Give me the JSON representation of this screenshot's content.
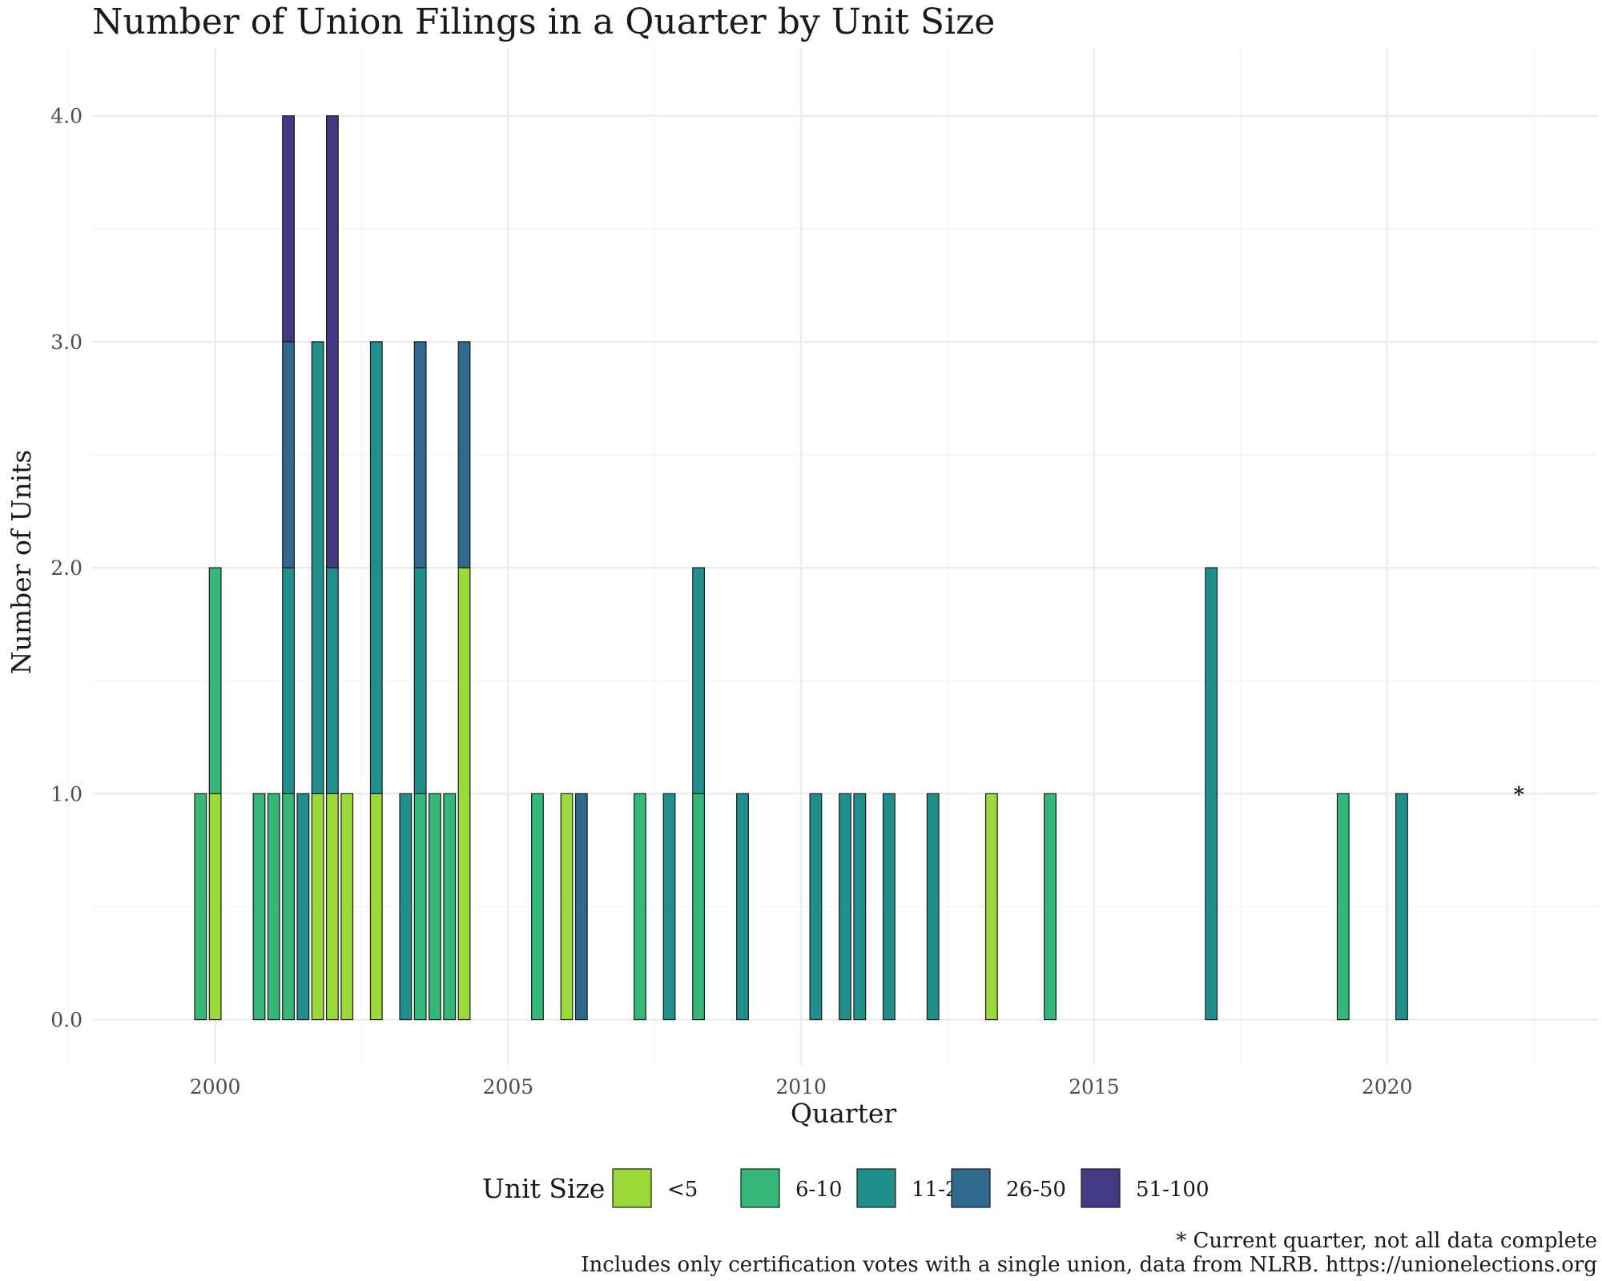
{
  "chart_data": {
    "type": "bar",
    "stacked": true,
    "title": "Number of Union Filings in a Quarter by Unit Size",
    "xlabel": "Quarter",
    "ylabel": "Number of Units",
    "xlim": [
      1997.9,
      2023.6
    ],
    "ylim": [
      -0.2,
      4.3
    ],
    "x_ticks": [
      2000,
      2005,
      2010,
      2015,
      2020
    ],
    "y_ticks": [
      0,
      1,
      2,
      3,
      4
    ],
    "y_tick_labels": [
      "0.0",
      "1.0",
      "2.0",
      "3.0",
      "4.0"
    ],
    "bar_width_years": 0.2,
    "legend": {
      "title": "Unit Size",
      "position": "bottom",
      "entries": [
        "<5",
        "6-10",
        "11-25",
        "26-50",
        "51-100"
      ]
    },
    "colors": {
      "<5": "#9bd93b",
      "6-10": "#35b779",
      "11-25": "#21908d",
      "26-50": "#31688e",
      "51-100": "#443a83"
    },
    "bars": [
      {
        "x": 1999.75,
        "segments": [
          {
            "size": "6-10",
            "count": 1
          }
        ]
      },
      {
        "x": 2000.0,
        "segments": [
          {
            "size": "<5",
            "count": 1
          },
          {
            "size": "6-10",
            "count": 1
          }
        ]
      },
      {
        "x": 2000.75,
        "segments": [
          {
            "size": "6-10",
            "count": 1
          }
        ]
      },
      {
        "x": 2001.0,
        "segments": [
          {
            "size": "6-10",
            "count": 1
          }
        ]
      },
      {
        "x": 2001.25,
        "segments": [
          {
            "size": "6-10",
            "count": 1
          },
          {
            "size": "11-25",
            "count": 1
          },
          {
            "size": "26-50",
            "count": 1
          },
          {
            "size": "51-100",
            "count": 1
          }
        ]
      },
      {
        "x": 2001.5,
        "segments": [
          {
            "size": "11-25",
            "count": 1
          }
        ]
      },
      {
        "x": 2001.75,
        "segments": [
          {
            "size": "<5",
            "count": 1
          },
          {
            "size": "11-25",
            "count": 2
          }
        ]
      },
      {
        "x": 2002.0,
        "segments": [
          {
            "size": "<5",
            "count": 1
          },
          {
            "size": "11-25",
            "count": 1
          },
          {
            "size": "51-100",
            "count": 2
          }
        ]
      },
      {
        "x": 2002.25,
        "segments": [
          {
            "size": "<5",
            "count": 1
          }
        ]
      },
      {
        "x": 2002.75,
        "segments": [
          {
            "size": "<5",
            "count": 1
          },
          {
            "size": "11-25",
            "count": 2
          }
        ]
      },
      {
        "x": 2003.25,
        "segments": [
          {
            "size": "11-25",
            "count": 1
          }
        ]
      },
      {
        "x": 2003.5,
        "segments": [
          {
            "size": "6-10",
            "count": 1
          },
          {
            "size": "11-25",
            "count": 1
          },
          {
            "size": "26-50",
            "count": 1
          }
        ]
      },
      {
        "x": 2003.75,
        "segments": [
          {
            "size": "6-10",
            "count": 1
          }
        ]
      },
      {
        "x": 2004.0,
        "segments": [
          {
            "size": "6-10",
            "count": 1
          }
        ]
      },
      {
        "x": 2004.25,
        "segments": [
          {
            "size": "<5",
            "count": 2
          },
          {
            "size": "26-50",
            "count": 1
          }
        ]
      },
      {
        "x": 2005.5,
        "segments": [
          {
            "size": "6-10",
            "count": 1
          }
        ]
      },
      {
        "x": 2006.0,
        "segments": [
          {
            "size": "<5",
            "count": 1
          }
        ]
      },
      {
        "x": 2006.25,
        "segments": [
          {
            "size": "26-50",
            "count": 1
          }
        ]
      },
      {
        "x": 2007.25,
        "segments": [
          {
            "size": "6-10",
            "count": 1
          }
        ]
      },
      {
        "x": 2007.75,
        "segments": [
          {
            "size": "11-25",
            "count": 1
          }
        ]
      },
      {
        "x": 2008.25,
        "segments": [
          {
            "size": "6-10",
            "count": 1
          },
          {
            "size": "11-25",
            "count": 1
          }
        ]
      },
      {
        "x": 2009.0,
        "segments": [
          {
            "size": "11-25",
            "count": 1
          }
        ]
      },
      {
        "x": 2010.25,
        "segments": [
          {
            "size": "11-25",
            "count": 1
          }
        ]
      },
      {
        "x": 2010.75,
        "segments": [
          {
            "size": "11-25",
            "count": 1
          }
        ]
      },
      {
        "x": 2011.0,
        "segments": [
          {
            "size": "11-25",
            "count": 1
          }
        ]
      },
      {
        "x": 2011.5,
        "segments": [
          {
            "size": "11-25",
            "count": 1
          }
        ]
      },
      {
        "x": 2012.25,
        "segments": [
          {
            "size": "11-25",
            "count": 1
          }
        ]
      },
      {
        "x": 2013.25,
        "segments": [
          {
            "size": "<5",
            "count": 1
          }
        ]
      },
      {
        "x": 2014.25,
        "segments": [
          {
            "size": "6-10",
            "count": 1
          }
        ]
      },
      {
        "x": 2017.0,
        "segments": [
          {
            "size": "11-25",
            "count": 2
          }
        ]
      },
      {
        "x": 2019.25,
        "segments": [
          {
            "size": "6-10",
            "count": 1
          }
        ]
      },
      {
        "x": 2020.25,
        "segments": [
          {
            "size": "11-25",
            "count": 1
          }
        ]
      }
    ],
    "annotations": [
      {
        "text": "*",
        "x": 2022.25,
        "y": 1.0
      }
    ],
    "caption_lines": [
      "* Current quarter, not all data complete",
      "Includes only certification votes with a single union, data from NLRB. https://unionelections.org"
    ]
  }
}
